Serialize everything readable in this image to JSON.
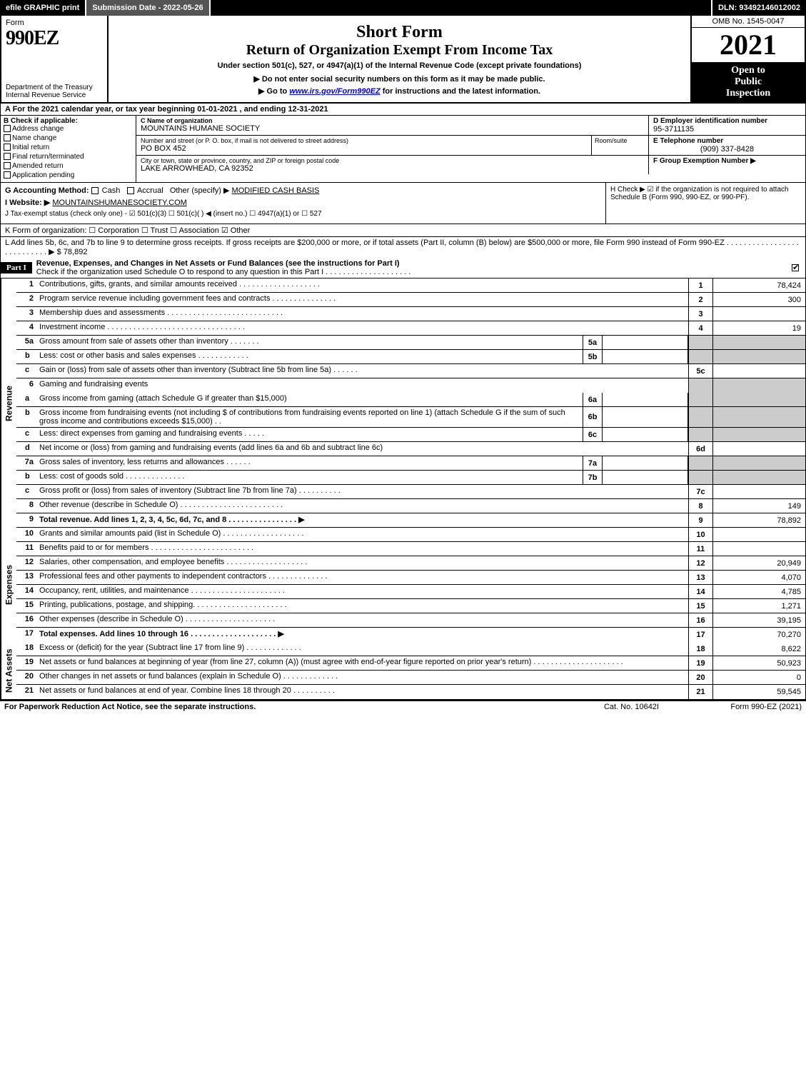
{
  "topbar": {
    "efile": "efile GRAPHIC print",
    "subdate_label": "Submission Date - 2022-05-26",
    "dln": "DLN: 93492146012002"
  },
  "header": {
    "form": "Form",
    "f990": "990EZ",
    "dept": "Department of the Treasury\nInternal Revenue Service",
    "short": "Short Form",
    "return": "Return of Organization Exempt From Income Tax",
    "under": "Under section 501(c), 527, or 4947(a)(1) of the Internal Revenue Code (except private foundations)",
    "donot": "▶ Do not enter social security numbers on this form as it may be made public.",
    "goto_pre": "▶ Go to ",
    "goto_link": "www.irs.gov/Form990EZ",
    "goto_post": " for instructions and the latest information.",
    "omb": "OMB No. 1545-0047",
    "year": "2021",
    "open": "Open to\nPublic\nInspection"
  },
  "line_a": "A  For the 2021 calendar year, or tax year beginning 01-01-2021 , and ending 12-31-2021",
  "section_b": {
    "label": "B  Check if applicable:",
    "items": [
      "Address change",
      "Name change",
      "Initial return",
      "Final return/terminated",
      "Amended return",
      "Application pending"
    ]
  },
  "section_c": {
    "name_lbl": "C Name of organization",
    "name": "MOUNTAINS HUMANE SOCIETY",
    "street_lbl": "Number and street (or P. O. box, if mail is not delivered to street address)",
    "street": "PO BOX 452",
    "room_lbl": "Room/suite",
    "city_lbl": "City or town, state or province, country, and ZIP or foreign postal code",
    "city": "LAKE ARROWHEAD, CA  92352"
  },
  "section_d": {
    "lbl": "D Employer identification number",
    "val": "95-3711135"
  },
  "section_e": {
    "lbl": "E Telephone number",
    "val": "(909) 337-8428"
  },
  "section_f": {
    "lbl": "F Group Exemption Number  ▶"
  },
  "line_g": {
    "pre": "G Accounting Method:   ",
    "cash": "Cash",
    "accrual": "Accrual",
    "other_lbl": "Other (specify) ▶",
    "other_val": "MODIFIED CASH BASIS"
  },
  "line_h": "H   Check ▶  ☑  if the organization is not required to attach Schedule B (Form 990, 990-EZ, or 990-PF).",
  "line_i": {
    "pre": "I Website: ▶",
    "val": "MOUNTAINSHUMANESOCIETY.COM"
  },
  "line_j": "J Tax-exempt status (check only one) -  ☑ 501(c)(3)  ☐ 501(c)(  ) ◀ (insert no.)  ☐ 4947(a)(1) or  ☐ 527",
  "line_k": "K Form of organization:   ☐ Corporation   ☐ Trust   ☐ Association   ☑ Other",
  "line_l": "L Add lines 5b, 6c, and 7b to line 9 to determine gross receipts. If gross receipts are $200,000 or more, or if total assets (Part II, column (B) below) are $500,000 or more, file Form 990 instead of Form 990-EZ  .  .  .  .  .  .  .  .  .  .  .  .  .  .  .  .  .  .  .  .  .  .  .  .  .  .  .  ▶ $ 78,892",
  "part1": {
    "label": "Part I",
    "title": "Revenue, Expenses, and Changes in Net Assets or Fund Balances (see the instructions for Part I)",
    "checkline": "Check if the organization used Schedule O to respond to any question in this Part I  .  .  .  .  .  .  .  .  .  .  .  .  .  .  .  .  .  .  .  ."
  },
  "revenue_label": "Revenue",
  "rev": [
    {
      "n": "1",
      "d": "Contributions, gifts, grants, and similar amounts received  .  .  .  .  .  .  .  .  .  .  .  .  .  .  .  .  .  .  .",
      "rn": "1",
      "rv": "78,424"
    },
    {
      "n": "2",
      "d": "Program service revenue including government fees and contracts  .  .  .  .  .  .  .  .  .  .  .  .  .  .  .",
      "rn": "2",
      "rv": "300"
    },
    {
      "n": "3",
      "d": "Membership dues and assessments  .  .  .  .  .  .  .  .  .  .  .  .  .  .  .  .  .  .  .  .  .  .  .  .  .  .  .",
      "rn": "3",
      "rv": ""
    },
    {
      "n": "4",
      "d": "Investment income  .  .  .  .  .  .  .  .  .  .  .  .  .  .  .  .  .  .  .  .  .  .  .  .  .  .  .  .  .  .  .  .",
      "rn": "4",
      "rv": "19"
    }
  ],
  "rev5a": {
    "n": "5a",
    "d": "Gross amount from sale of assets other than inventory  .  .  .  .  .  .  .",
    "sn": "5a"
  },
  "rev5b": {
    "n": "b",
    "d": "Less: cost or other basis and sales expenses  .  .  .  .  .  .  .  .  .  .  .  .",
    "sn": "5b"
  },
  "rev5c": {
    "n": "c",
    "d": "Gain or (loss) from sale of assets other than inventory (Subtract line 5b from line 5a)   .  .  .  .  .  .",
    "rn": "5c",
    "rv": ""
  },
  "rev6": {
    "n": "6",
    "d": "Gaming and fundraising events"
  },
  "rev6a": {
    "n": "a",
    "d": "Gross income from gaming (attach Schedule G if greater than $15,000)",
    "sn": "6a"
  },
  "rev6b": {
    "n": "b",
    "d": "Gross income from fundraising events (not including $                     of contributions from fundraising events reported on line 1) (attach Schedule G if the sum of such gross income and contributions exceeds $15,000)   .  .",
    "sn": "6b"
  },
  "rev6c": {
    "n": "c",
    "d": "Less: direct expenses from gaming and fundraising events    .  .  .  .  .",
    "sn": "6c"
  },
  "rev6d": {
    "n": "d",
    "d": "Net income or (loss) from gaming and fundraising events (add lines 6a and 6b and subtract line 6c)",
    "rn": "6d",
    "rv": ""
  },
  "rev7a": {
    "n": "7a",
    "d": "Gross sales of inventory, less returns and allowances  .  .  .  .  .  .",
    "sn": "7a"
  },
  "rev7b": {
    "n": "b",
    "d": "Less: cost of goods sold        .  .  .  .  .  .  .  .  .  .  .  .  .  .",
    "sn": "7b"
  },
  "rev7c": {
    "n": "c",
    "d": "Gross profit or (loss) from sales of inventory (Subtract line 7b from line 7a)   .  .  .  .  .  .  .  .  .  .",
    "rn": "7c",
    "rv": ""
  },
  "rev8": {
    "n": "8",
    "d": "Other revenue (describe in Schedule O)  .  .  .  .  .  .  .  .  .  .  .  .  .  .  .  .  .  .  .  .  .  .  .  .",
    "rn": "8",
    "rv": "149"
  },
  "rev9": {
    "n": "9",
    "d": "Total revenue. Add lines 1, 2, 3, 4, 5c, 6d, 7c, and 8   .  .  .  .  .  .  .  .  .  .  .  .  .  .  .  .  ▶",
    "rn": "9",
    "rv": "78,892",
    "bold": true
  },
  "expenses_label": "Expenses",
  "exp": [
    {
      "n": "10",
      "d": "Grants and similar amounts paid (list in Schedule O)  .  .  .  .  .  .  .  .  .  .  .  .  .  .  .  .  .  .  .",
      "rn": "10",
      "rv": ""
    },
    {
      "n": "11",
      "d": "Benefits paid to or for members       .  .  .  .  .  .  .  .  .  .  .  .  .  .  .  .  .  .  .  .  .  .  .  .",
      "rn": "11",
      "rv": ""
    },
    {
      "n": "12",
      "d": "Salaries, other compensation, and employee benefits .  .  .  .  .  .  .  .  .  .  .  .  .  .  .  .  .  .  .",
      "rn": "12",
      "rv": "20,949"
    },
    {
      "n": "13",
      "d": "Professional fees and other payments to independent contractors  .  .  .  .  .  .  .  .  .  .  .  .  .  .",
      "rn": "13",
      "rv": "4,070"
    },
    {
      "n": "14",
      "d": "Occupancy, rent, utilities, and maintenance .  .  .  .  .  .  .  .  .  .  .  .  .  .  .  .  .  .  .  .  .  .",
      "rn": "14",
      "rv": "4,785"
    },
    {
      "n": "15",
      "d": "Printing, publications, postage, and shipping.   .  .  .  .  .  .  .  .  .  .  .  .  .  .  .  .  .  .  .  .  .",
      "rn": "15",
      "rv": "1,271"
    },
    {
      "n": "16",
      "d": "Other expenses (describe in Schedule O)      .  .  .  .  .  .  .  .  .  .  .  .  .  .  .  .  .  .  .  .  .",
      "rn": "16",
      "rv": "39,195"
    },
    {
      "n": "17",
      "d": "Total expenses. Add lines 10 through 16     .  .  .  .  .  .  .  .  .  .  .  .  .  .  .  .  .  .  .  .  ▶",
      "rn": "17",
      "rv": "70,270",
      "bold": true
    }
  ],
  "netassets_label": "Net Assets",
  "net": [
    {
      "n": "18",
      "d": "Excess or (deficit) for the year (Subtract line 17 from line 9)        .  .  .  .  .  .  .  .  .  .  .  .  .",
      "rn": "18",
      "rv": "8,622"
    },
    {
      "n": "19",
      "d": "Net assets or fund balances at beginning of year (from line 27, column (A)) (must agree with end-of-year figure reported on prior year's return) .  .  .  .  .  .  .  .  .  .  .  .  .  .  .  .  .  .  .  .  .",
      "rn": "19",
      "rv": "50,923"
    },
    {
      "n": "20",
      "d": "Other changes in net assets or fund balances (explain in Schedule O) .  .  .  .  .  .  .  .  .  .  .  .  .",
      "rn": "20",
      "rv": "0"
    },
    {
      "n": "21",
      "d": "Net assets or fund balances at end of year. Combine lines 18 through 20 .  .  .  .  .  .  .  .  .  .",
      "rn": "21",
      "rv": "59,545"
    }
  ],
  "footer": {
    "left": "For Paperwork Reduction Act Notice, see the separate instructions.",
    "mid": "Cat. No. 10642I",
    "right": "Form 990-EZ (2021)"
  }
}
